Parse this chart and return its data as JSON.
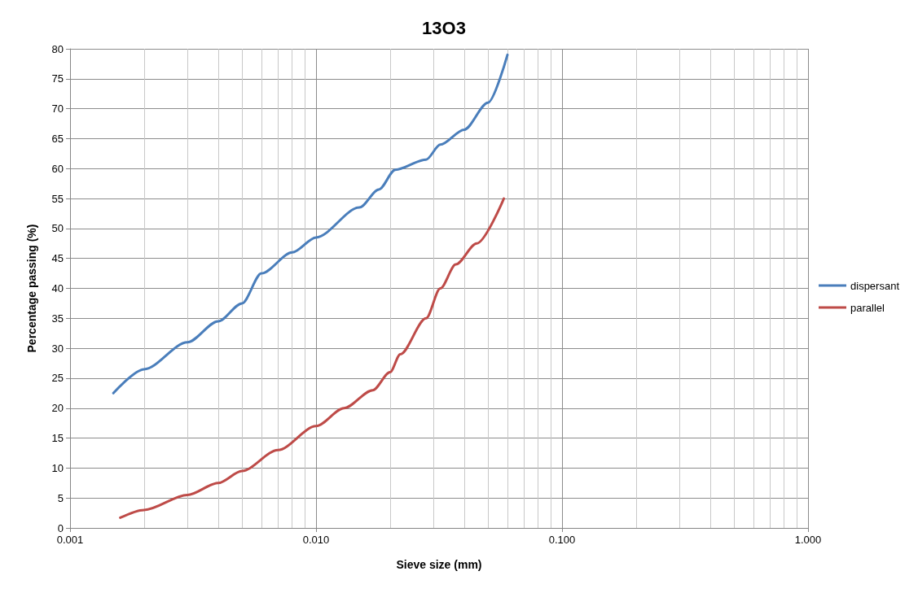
{
  "chart_data": {
    "type": "line",
    "title": "13O3",
    "xlabel": "Sieve size (mm)",
    "ylabel": "Percentage passing (%)",
    "log": "x",
    "grid": true,
    "legend": "right",
    "marker": "none",
    "line_style": "solid",
    "xlim": [
      0.001,
      1
    ],
    "xticks": [
      {
        "value": 0.001,
        "label": "0.001"
      },
      {
        "value": 0.01,
        "label": "0.010"
      },
      {
        "value": 0.1,
        "label": "0.100"
      },
      {
        "value": 1,
        "label": "1.000"
      }
    ],
    "ylim": [
      0,
      80
    ],
    "yticks": [
      0,
      5,
      10,
      15,
      20,
      25,
      30,
      35,
      40,
      45,
      50,
      55,
      60,
      65,
      70,
      75,
      80
    ],
    "series": [
      {
        "name": "dispersant",
        "color": "#4a7ebb",
        "x": [
          0.0015,
          0.002,
          0.003,
          0.004,
          0.005,
          0.006,
          0.008,
          0.01,
          0.015,
          0.018,
          0.021,
          0.028,
          0.032,
          0.04,
          0.05,
          0.06
        ],
        "values": [
          22.5,
          26.5,
          31,
          34.5,
          37.5,
          42.5,
          46,
          48.5,
          53.5,
          56.5,
          59.8,
          61.5,
          64,
          66.5,
          71,
          79
        ]
      },
      {
        "name": "parallel",
        "color": "#be4b48",
        "x": [
          0.0016,
          0.002,
          0.003,
          0.004,
          0.005,
          0.007,
          0.01,
          0.013,
          0.017,
          0.02,
          0.022,
          0.028,
          0.032,
          0.037,
          0.045,
          0.058
        ],
        "values": [
          1.7,
          3,
          5.5,
          7.5,
          9.5,
          13,
          17,
          20,
          23,
          26,
          29,
          35,
          40,
          44,
          47.5,
          55
        ]
      }
    ]
  }
}
